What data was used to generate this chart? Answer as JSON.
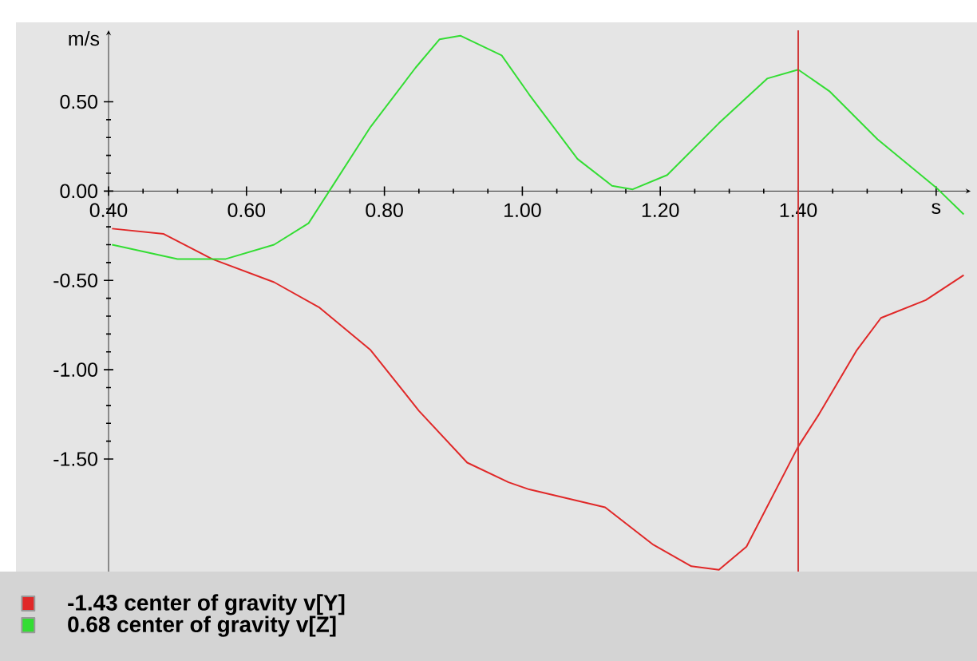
{
  "chart_data": {
    "type": "line",
    "xlabel": "s",
    "ylabel": "m/s",
    "xlim": [
      0.4,
      1.65
    ],
    "ylim": [
      -2.13,
      0.9
    ],
    "xticks": [
      {
        "value": 0.4,
        "label": "0.40"
      },
      {
        "value": 0.6,
        "label": "0.60"
      },
      {
        "value": 0.8,
        "label": "0.80"
      },
      {
        "value": 1.0,
        "label": "1.00"
      },
      {
        "value": 1.2,
        "label": "1.20"
      },
      {
        "value": 1.4,
        "label": "1.40"
      },
      {
        "value": 1.6,
        "label": null
      }
    ],
    "yticks": [
      {
        "value": 0.5,
        "label": "0.50"
      },
      {
        "value": 0.0,
        "label": "0.00"
      },
      {
        "value": -0.5,
        "label": "-0.50"
      },
      {
        "value": -1.0,
        "label": "-1.00"
      },
      {
        "value": -1.5,
        "label": "-1.50"
      }
    ],
    "series": [
      {
        "name": "-1.43 center of gravity  v[Y]",
        "color": "#e02828",
        "x": [
          0.405,
          0.48,
          0.55,
          0.64,
          0.705,
          0.78,
          0.85,
          0.92,
          0.98,
          1.01,
          1.12,
          1.19,
          1.245,
          1.285,
          1.325,
          1.4,
          1.43,
          1.485,
          1.52,
          1.585,
          1.64
        ],
        "values": [
          -0.21,
          -0.24,
          -0.38,
          -0.51,
          -0.65,
          -0.89,
          -1.23,
          -1.52,
          -1.63,
          -1.67,
          -1.77,
          -1.98,
          -2.1,
          -2.12,
          -1.99,
          -1.43,
          -1.25,
          -0.89,
          -0.71,
          -0.61,
          -0.47
        ]
      },
      {
        "name": "0.68 center of gravity  v[Z]",
        "color": "#33dd33",
        "x": [
          0.405,
          0.5,
          0.57,
          0.64,
          0.69,
          0.72,
          0.78,
          0.845,
          0.88,
          0.91,
          0.97,
          1.01,
          1.08,
          1.13,
          1.16,
          1.21,
          1.285,
          1.355,
          1.4,
          1.445,
          1.515,
          1.6,
          1.64
        ],
        "values": [
          -0.3,
          -0.38,
          -0.38,
          -0.3,
          -0.18,
          0.0,
          0.36,
          0.69,
          0.85,
          0.87,
          0.76,
          0.54,
          0.18,
          0.03,
          0.01,
          0.09,
          0.38,
          0.63,
          0.68,
          0.56,
          0.29,
          0.02,
          -0.13
        ]
      }
    ],
    "ref_lines": [
      {
        "axis": "x",
        "value": 1.4,
        "color": "#d03a3a",
        "line_style": "solid"
      }
    ],
    "legend": "bottom",
    "marker": "none",
    "line_style": "solid"
  }
}
